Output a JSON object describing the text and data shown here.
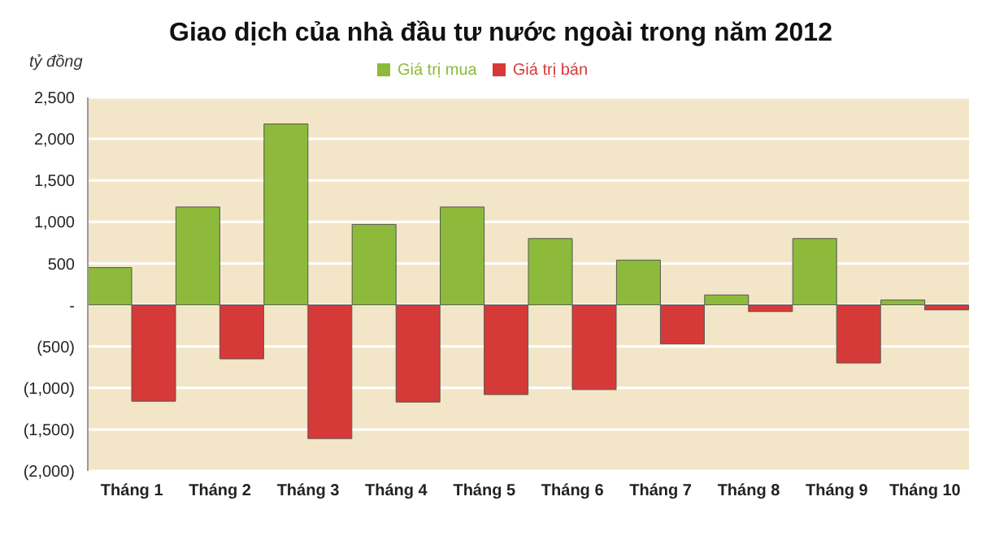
{
  "chart_data": {
    "type": "bar",
    "title": "Giao dịch của nhà đầu tư nước ngoài trong năm 2012",
    "ylabel": "tỷ đồng",
    "categories": [
      "Tháng 1",
      "Tháng 2",
      "Tháng 3",
      "Tháng 4",
      "Tháng 5",
      "Tháng 6",
      "Tháng 7",
      "Tháng 8",
      "Tháng 9",
      "Tháng 10"
    ],
    "series": [
      {
        "name": "Giá trị mua",
        "color": "#8dba3a",
        "values": [
          450,
          1180,
          2180,
          970,
          1180,
          800,
          540,
          120,
          800,
          60
        ]
      },
      {
        "name": "Giá trị bán",
        "color": "#d63a38",
        "values": [
          -1160,
          -650,
          -1610,
          -1170,
          -1080,
          -1020,
          -470,
          -80,
          -700,
          -60
        ]
      }
    ],
    "ylim": [
      -2000,
      2500
    ],
    "yticks": [
      {
        "value": -2000,
        "label": "(2,000)"
      },
      {
        "value": -1500,
        "label": "(1,500)"
      },
      {
        "value": -1000,
        "label": "(1,000)"
      },
      {
        "value": -500,
        "label": "(500)"
      },
      {
        "value": 0,
        "label": "-"
      },
      {
        "value": 500,
        "label": "500"
      },
      {
        "value": 1000,
        "label": "1,000"
      },
      {
        "value": 1500,
        "label": "1,500"
      },
      {
        "value": 2000,
        "label": "2,000"
      },
      {
        "value": 2500,
        "label": "2,500"
      }
    ],
    "grid": "y",
    "legend": "top"
  }
}
